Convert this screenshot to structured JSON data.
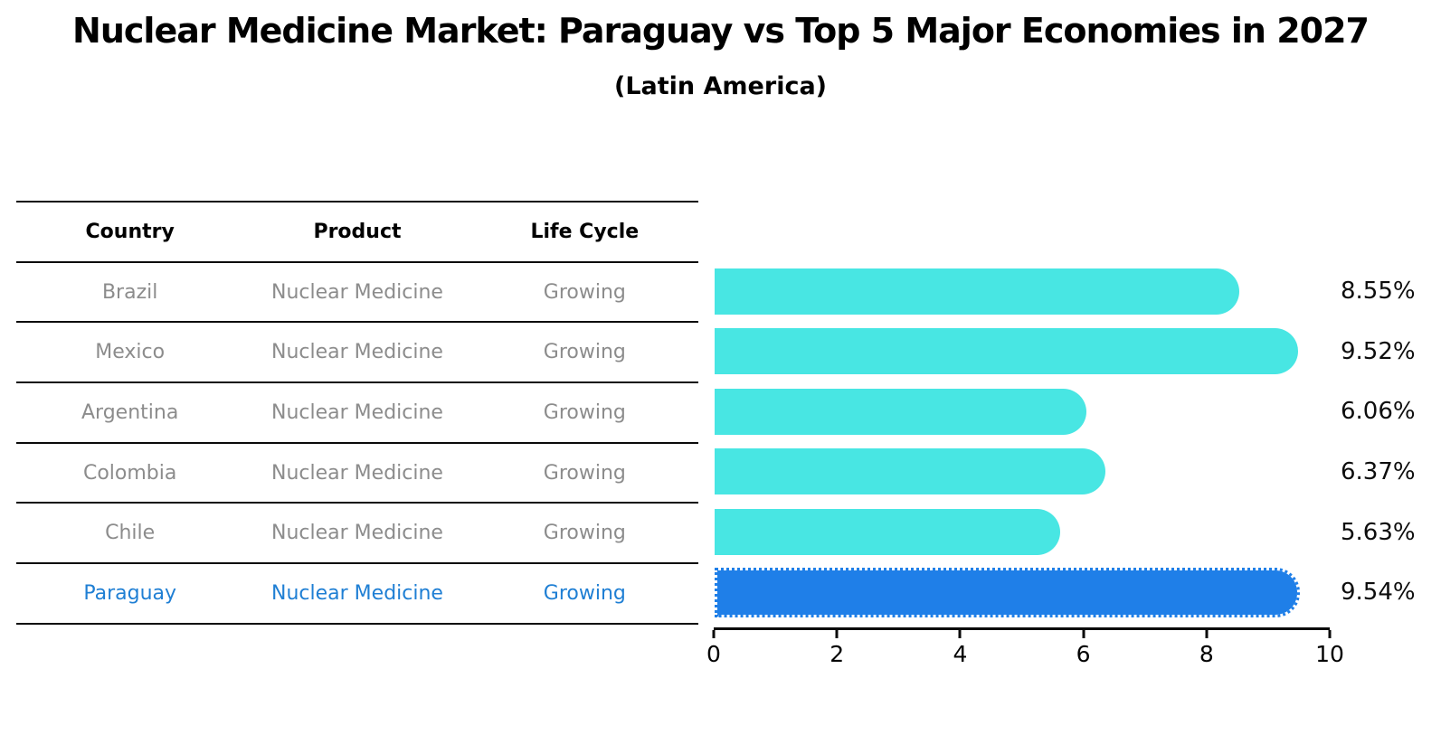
{
  "title": "Nuclear Medicine Market: Paraguay vs Top 5 Major Economies in 2027",
  "subtitle": "(Latin America)",
  "table": {
    "headers": [
      "Country",
      "Product",
      "Life Cycle"
    ],
    "rows": [
      {
        "country": "Brazil",
        "product": "Nuclear Medicine",
        "life_cycle": "Growing"
      },
      {
        "country": "Mexico",
        "product": "Nuclear Medicine",
        "life_cycle": "Growing"
      },
      {
        "country": "Argentina",
        "product": "Nuclear Medicine",
        "life_cycle": "Growing"
      },
      {
        "country": "Colombia",
        "product": "Nuclear Medicine",
        "life_cycle": "Growing"
      },
      {
        "country": "Chile",
        "product": "Nuclear Medicine",
        "life_cycle": "Growing"
      },
      {
        "country": "Paraguay",
        "product": "Nuclear Medicine",
        "life_cycle": "Growing"
      }
    ]
  },
  "chart_data": {
    "type": "bar",
    "orientation": "horizontal",
    "title": "Nuclear Medicine Market: Paraguay vs Top 5 Major Economies in 2027",
    "subtitle": "(Latin America)",
    "categories": [
      "Brazil",
      "Mexico",
      "Argentina",
      "Colombia",
      "Chile",
      "Paraguay"
    ],
    "values": [
      8.55,
      9.52,
      6.06,
      6.37,
      5.63,
      9.54
    ],
    "value_labels": [
      "8.55%",
      "9.52%",
      "6.06%",
      "6.37%",
      "5.63%",
      "9.54%"
    ],
    "xlabel": "",
    "ylabel": "",
    "xlim": [
      0,
      10
    ],
    "x_ticks": [
      0,
      2,
      4,
      6,
      8,
      10
    ],
    "grid": false,
    "legend": false,
    "highlighted_category": "Paraguay"
  },
  "colors": {
    "bar": "#48e6e3",
    "highlight_bar": "#1f7fe8",
    "highlight_text": "#1f7fd4",
    "table_text": "#8c8c8c",
    "heading_text": "#000000",
    "axis": "#0a0a0a"
  }
}
